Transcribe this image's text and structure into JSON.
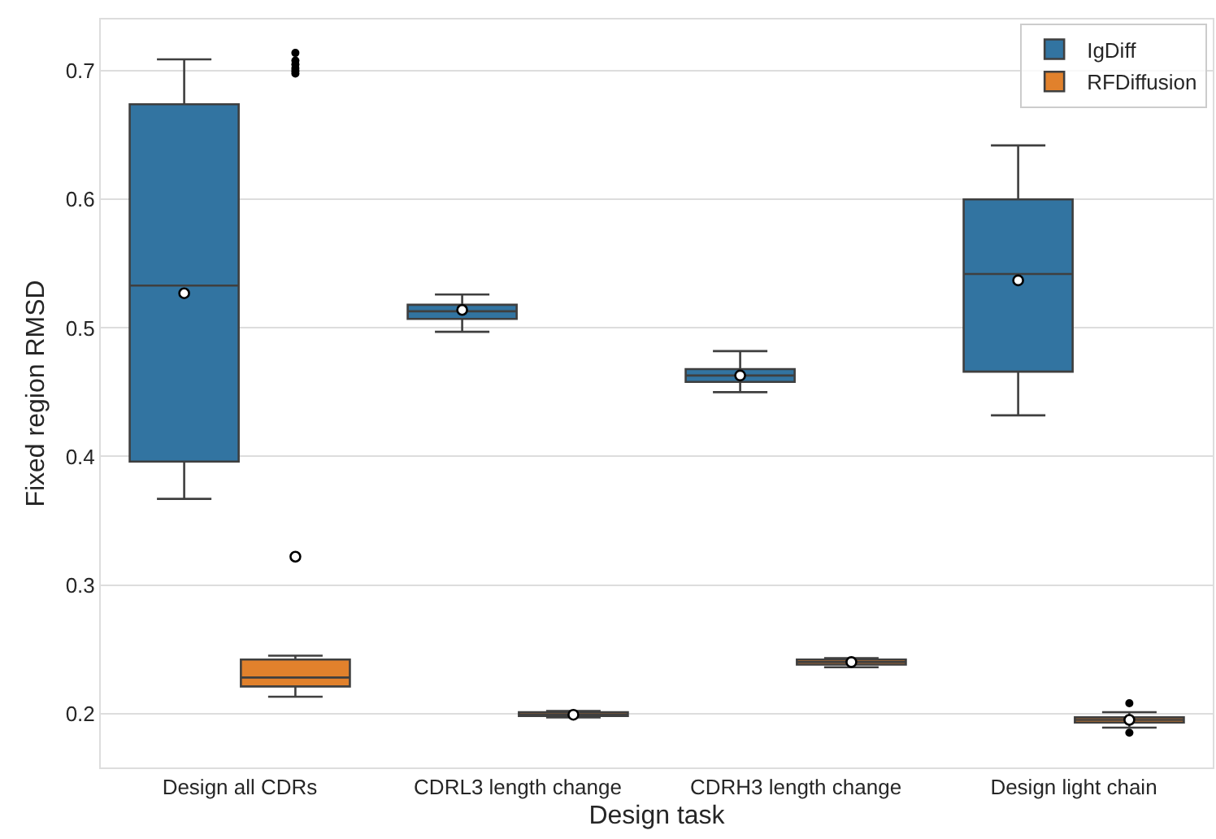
{
  "chart_data": {
    "type": "box",
    "xlabel": "Design task",
    "ylabel": "Fixed region RMSD",
    "categories": [
      "Design all CDRs",
      "CDRL3 length change",
      "CDRH3 length change",
      "Design light chain"
    ],
    "ylim": [
      0.158,
      0.74
    ],
    "yticks": [
      0.2,
      0.3,
      0.4,
      0.5,
      0.6,
      0.7
    ],
    "grid": "y",
    "legend": "top right",
    "series": [
      {
        "name": "IgDiff",
        "color": "#3274a1",
        "boxes": [
          {
            "low": 0.367,
            "q1": 0.396,
            "median": 0.533,
            "q3": 0.674,
            "high": 0.709,
            "mean": 0.527
          },
          {
            "low": 0.497,
            "q1": 0.507,
            "median": 0.513,
            "q3": 0.518,
            "high": 0.526,
            "mean": 0.514
          },
          {
            "low": 0.45,
            "q1": 0.458,
            "median": 0.463,
            "q3": 0.468,
            "high": 0.482,
            "mean": 0.463
          },
          {
            "low": 0.432,
            "q1": 0.466,
            "median": 0.542,
            "q3": 0.6,
            "high": 0.642,
            "mean": 0.537
          }
        ]
      },
      {
        "name": "RFDiffusion",
        "color": "#e1812c",
        "boxes": [
          {
            "low": 0.213,
            "q1": 0.221,
            "median": 0.228,
            "q3": 0.242,
            "high": 0.245,
            "mean": 0.322,
            "outliers": [
              0.698,
              0.7,
              0.702,
              0.705,
              0.708,
              0.714
            ]
          },
          {
            "low": 0.197,
            "q1": 0.198,
            "median": 0.199,
            "q3": 0.201,
            "high": 0.202,
            "mean": 0.199
          },
          {
            "low": 0.236,
            "q1": 0.238,
            "median": 0.24,
            "q3": 0.242,
            "high": 0.243,
            "mean": 0.24
          },
          {
            "low": 0.189,
            "q1": 0.193,
            "median": 0.195,
            "q3": 0.197,
            "high": 0.201,
            "mean": 0.195,
            "outliers": [
              0.208,
              0.185
            ]
          }
        ]
      }
    ]
  }
}
